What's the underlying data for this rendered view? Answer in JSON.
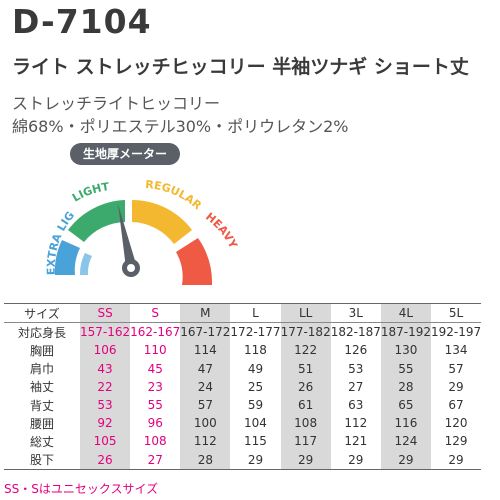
{
  "product": {
    "code": "D-7104",
    "title": "ライト ストレッチヒッコリー 半袖ツナギ ショート丈",
    "fabric": "ストレッチライトヒッコリー",
    "composition": "綿68%・ポリエステル30%・ポリウレタン2%"
  },
  "meter": {
    "title": "生地厚メーター",
    "labels": {
      "extra_light": "EXTRA LIGHT",
      "light": "LIGHT",
      "regular": "REGULAR",
      "heavy": "HEAVY"
    },
    "level": "LIGHT",
    "colors": {
      "extra_light": "#4aa3d8",
      "light": "#3daa6d",
      "regular": "#f4b830",
      "heavy": "#ee5a44",
      "needle": "#5a5f68"
    }
  },
  "size_table": {
    "sizes": [
      "SS",
      "S",
      "M",
      "L",
      "LL",
      "3L",
      "4L",
      "5L"
    ],
    "rows": [
      {
        "label": "対応身長",
        "values": [
          "157-162",
          "162-167",
          "167-172",
          "172-177",
          "177-182",
          "182-187",
          "187-192",
          "192-197"
        ]
      },
      {
        "label": "胸囲",
        "values": [
          "106",
          "110",
          "114",
          "118",
          "122",
          "126",
          "130",
          "134"
        ]
      },
      {
        "label": "肩巾",
        "values": [
          "43",
          "45",
          "47",
          "49",
          "51",
          "53",
          "55",
          "57"
        ]
      },
      {
        "label": "袖丈",
        "values": [
          "22",
          "23",
          "24",
          "25",
          "26",
          "27",
          "28",
          "29"
        ]
      },
      {
        "label": "背丈",
        "values": [
          "53",
          "55",
          "57",
          "59",
          "61",
          "63",
          "65",
          "67"
        ]
      },
      {
        "label": "腰囲",
        "values": [
          "92",
          "96",
          "100",
          "104",
          "108",
          "112",
          "116",
          "120"
        ]
      },
      {
        "label": "総丈",
        "values": [
          "105",
          "108",
          "112",
          "115",
          "117",
          "121",
          "124",
          "129"
        ]
      },
      {
        "label": "股下",
        "values": [
          "26",
          "27",
          "28",
          "29",
          "29",
          "29",
          "29",
          "29"
        ]
      }
    ],
    "size_label": "サイズ",
    "unisex_color": "#e4007f",
    "note": "SS・Sはユニセックスサイズ"
  }
}
